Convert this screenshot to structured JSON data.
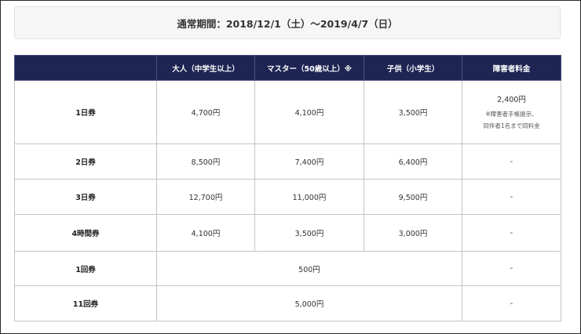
{
  "period": "通常期間：2018/12/1（土）～2019/4/7（日）",
  "headers": [
    "",
    "大人（中学生以上）",
    "マスター（50歳以上）※",
    "子供（小学生）",
    "障害者料金"
  ],
  "rows": [
    {
      "label": "1日券",
      "adult": "4,700円",
      "master": "4,100円",
      "child": "3,500円",
      "disabled_price": "2,400円",
      "disabled_note1": "※障害者手帳提示、",
      "disabled_note2": "同伴者1名まで同料金"
    },
    {
      "label": "2日券",
      "adult": "8,500円",
      "master": "7,400円",
      "child": "6,400円",
      "disabled": "-"
    },
    {
      "label": "3日券",
      "adult": "12,700円",
      "master": "11,000円",
      "child": "9,500円",
      "disabled": "-"
    },
    {
      "label": "4時間券",
      "adult": "4,100円",
      "master": "3,500円",
      "child": "3,000円",
      "disabled": "-"
    },
    {
      "label": "1回券",
      "combined": "500円",
      "disabled": "-"
    },
    {
      "label": "11回券",
      "combined": "5,000円",
      "disabled": "-"
    }
  ]
}
